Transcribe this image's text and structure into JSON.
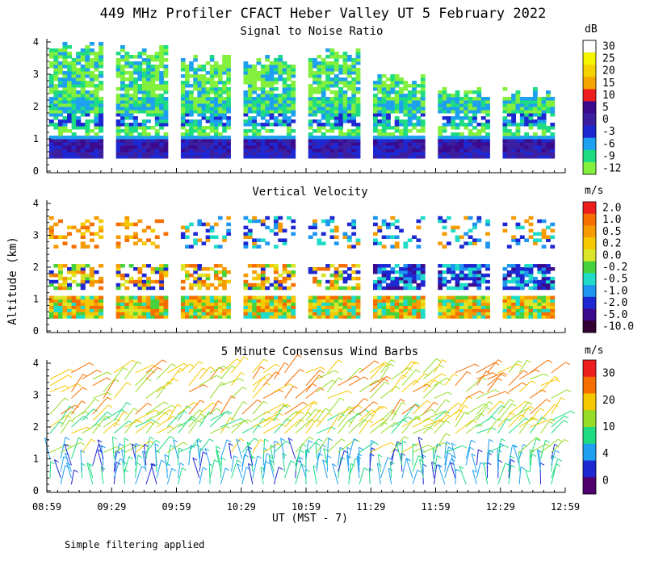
{
  "chart_data": [
    {
      "type": "heatmap",
      "title": "449 MHz Profiler CFACT Heber Valley UT  5 February 2022",
      "subtitle": "Signal to Noise Ratio",
      "ylabel": "Altitude (km)",
      "xlabel": "UT  (MST - 7)",
      "ylim": [
        0,
        4
      ],
      "y_ticks": [
        "0",
        "1",
        "2",
        "3",
        "4"
      ],
      "x_ticks": [
        "08:59",
        "09:29",
        "09:59",
        "10:29",
        "10:59",
        "11:29",
        "11:59",
        "12:29",
        "12:59"
      ],
      "colorbar_unit": "dB",
      "colorbar_labels": [
        "30",
        "25",
        "20",
        "15",
        "10",
        "5",
        "0",
        "-3",
        "-6",
        "-9",
        "-12"
      ],
      "colorbar_colors": [
        "#ffffff",
        "#f5f500",
        "#f5d200",
        "#f5a500",
        "#ee1e1e",
        "#3c0a8c",
        "#3c1ea0",
        "#1e28d2",
        "#1ea0f0",
        "#1edc82",
        "#82f03c"
      ],
      "time_range_hours": [
        8.983,
        12.983
      ],
      "blocks": [
        {
          "start": "09:00",
          "end": "09:25",
          "top_km": 4.0
        },
        {
          "start": "09:31",
          "end": "09:55",
          "top_km": 3.9
        },
        {
          "start": "10:01",
          "end": "10:24",
          "top_km": 3.6
        },
        {
          "start": "10:30",
          "end": "10:54",
          "top_km": 3.6
        },
        {
          "start": "11:00",
          "end": "11:24",
          "top_km": 3.8
        },
        {
          "start": "11:30",
          "end": "11:54",
          "top_km": 3.0
        },
        {
          "start": "12:00",
          "end": "12:24",
          "top_km": 2.6
        },
        {
          "start": "12:30",
          "end": "12:54",
          "top_km": 2.6
        }
      ]
    },
    {
      "type": "heatmap",
      "title": "Vertical Velocity",
      "ylabel": "Altitude (km)",
      "ylim": [
        0,
        4
      ],
      "y_ticks": [
        "0",
        "1",
        "2",
        "3",
        "4"
      ],
      "colorbar_unit": "m/s",
      "colorbar_labels": [
        "2.0",
        "1.0",
        "0.5",
        "0.2",
        "0.0",
        "-0.2",
        "-0.5",
        "-1.0",
        "-2.0",
        "-5.0",
        "-10.0"
      ],
      "colorbar_colors": [
        "#ee1e1e",
        "#f56e00",
        "#f59b00",
        "#f5c800",
        "#dce628",
        "#46d23c",
        "#1edcc8",
        "#1e96f0",
        "#1e28d2",
        "#3c0a8c",
        "#320032"
      ]
    },
    {
      "type": "scatter",
      "title": "5 Minute Consensus Wind Barbs",
      "ylabel": "Altitude (km)",
      "ylim": [
        0,
        4
      ],
      "y_ticks": [
        "0",
        "1",
        "2",
        "3",
        "4"
      ],
      "colorbar_unit": "m/s",
      "colorbar_labels": [
        "30",
        "20",
        "10",
        "4",
        "0"
      ],
      "colorbar_colors": [
        "#ee1e1e",
        "#f56e00",
        "#f5c800",
        "#96dc28",
        "#1edc82",
        "#1ea0f0",
        "#1e28d2",
        "#50006e"
      ]
    }
  ],
  "footer_note": "Simple filtering applied"
}
